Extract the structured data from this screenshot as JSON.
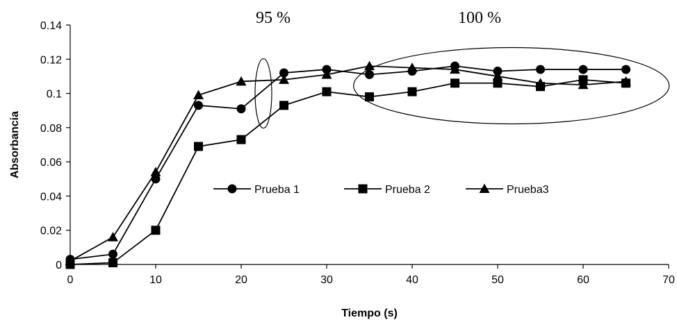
{
  "chart_data": {
    "type": "line",
    "title": "",
    "xlabel": "Tiempo (s)",
    "ylabel": "Absorbancia",
    "xlim": [
      0,
      70
    ],
    "ylim": [
      0,
      0.14
    ],
    "xticks": [
      "0",
      "10",
      "20",
      "30",
      "40",
      "50",
      "60",
      "70"
    ],
    "yticks": [
      "0",
      "0.02",
      "0.04",
      "0.06",
      "0.08",
      "0.1",
      "0.12",
      "0.14"
    ],
    "grid": false,
    "legend_position": "center",
    "series": [
      {
        "name": "Prueba 1",
        "marker": "circle",
        "x": [
          0,
          5,
          10,
          15,
          20,
          25,
          30,
          35,
          40,
          45,
          50,
          55,
          60,
          65
        ],
        "values": [
          0.003,
          0.006,
          0.05,
          0.093,
          0.091,
          0.112,
          0.114,
          0.111,
          0.113,
          0.116,
          0.113,
          0.114,
          0.114,
          0.114
        ]
      },
      {
        "name": "Prueba 2",
        "marker": "square",
        "x": [
          0,
          5,
          10,
          15,
          20,
          25,
          30,
          35,
          40,
          45,
          50,
          55,
          60,
          65
        ],
        "values": [
          0.0,
          0.001,
          0.02,
          0.069,
          0.073,
          0.093,
          0.101,
          0.098,
          0.101,
          0.106,
          0.106,
          0.104,
          0.108,
          0.106
        ]
      },
      {
        "name": "Prueba3",
        "marker": "triangle",
        "x": [
          0,
          5,
          10,
          15,
          20,
          25,
          30,
          35,
          40,
          45,
          50,
          55,
          60,
          65
        ],
        "values": [
          0.002,
          0.016,
          0.054,
          0.099,
          0.107,
          0.108,
          0.111,
          0.116,
          0.115,
          0.114,
          0.11,
          0.106,
          0.105,
          0.107
        ]
      }
    ],
    "annotations": [
      {
        "text": "95 %"
      },
      {
        "text": "100 %"
      }
    ]
  }
}
